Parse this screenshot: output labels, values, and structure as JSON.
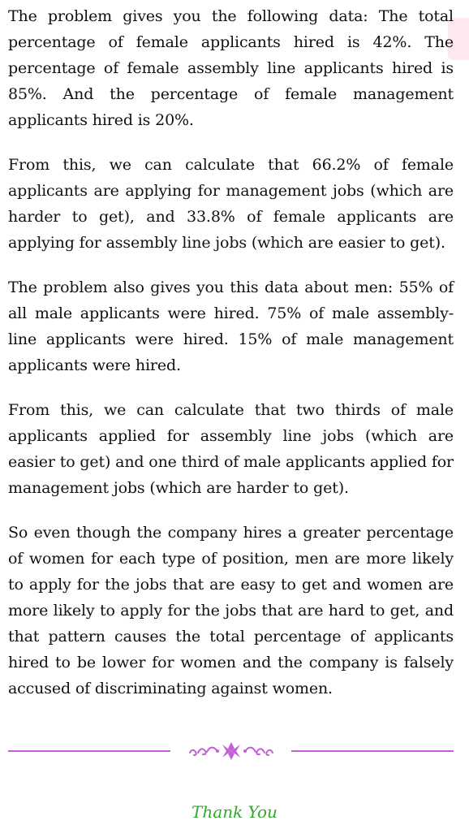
{
  "paragraphs": [
    "The problem gives you the following data: The total percentage of female applicants hired is 42%. The percentage of female assembly line applicants hired is 85%. And the percentage of female management applicants hired is 20%.",
    "From this, we can calculate that 66.2% of female applicants are applying for management jobs (which are harder to get), and 33.8% of female applicants are applying for assembly line jobs (which are easier to get).",
    "The problem also gives you this data about men: 55% of all male applicants were hired. 75% of male assembly-line applicants were hired. 15% of male management applicants were hired.",
    "From this, we can calculate that two thirds of male applicants applied for assembly line jobs (which are easier to get) and one third of male applicants applied for management jobs (which are harder to get).",
    "So even though the company hires a greater percentage of women for each type of position, men are more likely to apply for the jobs that are easy to get and women are more likely to apply for the jobs that are hard to get, and that pattern causes the total percentage of applicants hired to be lower for women and the company is falsely accused of discriminating against women."
  ],
  "closing": "Thank You",
  "colors": {
    "text": "#111111",
    "divider": "#c45dd8",
    "closing": "#2eaa2a",
    "corner_mark": "#fde6ee"
  },
  "icons": {
    "divider_ornament": "flourish-ornament-icon"
  }
}
